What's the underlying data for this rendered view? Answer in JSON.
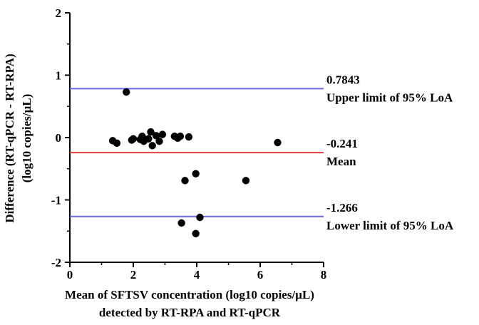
{
  "chart_data": {
    "type": "scatter",
    "title": "",
    "xlabel_line1": "Mean of SFTSV concentration (log10 copies/µL)",
    "xlabel_line2": "detected by RT-RPA and RT-qPCR",
    "ylabel_line1": "Difference (RT-qPCR - RT-RPA)",
    "ylabel_line2": "(log10 copies/µL)",
    "xlim": [
      0,
      8
    ],
    "ylim": [
      -2,
      2
    ],
    "x_ticks": [
      0,
      2,
      4,
      6,
      8
    ],
    "y_ticks": [
      -2,
      -1,
      0,
      1,
      2
    ],
    "x_tick_labels": [
      "0",
      "2",
      "4",
      "6",
      "8"
    ],
    "y_tick_labels": [
      "-2",
      "-1",
      "0",
      "1",
      "2"
    ],
    "grid": false,
    "points": [
      {
        "x": 1.35,
        "y": -0.05
      },
      {
        "x": 1.48,
        "y": -0.09
      },
      {
        "x": 1.78,
        "y": 0.73
      },
      {
        "x": 1.95,
        "y": -0.04
      },
      {
        "x": 2.0,
        "y": -0.02
      },
      {
        "x": 2.22,
        "y": -0.03
      },
      {
        "x": 2.28,
        "y": 0.02
      },
      {
        "x": 2.33,
        "y": -0.06
      },
      {
        "x": 2.48,
        "y": -0.02
      },
      {
        "x": 2.55,
        "y": 0.09
      },
      {
        "x": 2.6,
        "y": -0.13
      },
      {
        "x": 2.72,
        "y": 0.03
      },
      {
        "x": 2.82,
        "y": -0.06
      },
      {
        "x": 2.92,
        "y": 0.05
      },
      {
        "x": 3.3,
        "y": 0.02
      },
      {
        "x": 3.4,
        "y": -0.01
      },
      {
        "x": 3.48,
        "y": 0.02
      },
      {
        "x": 3.52,
        "y": -1.37
      },
      {
        "x": 3.63,
        "y": -0.69
      },
      {
        "x": 3.75,
        "y": 0.01
      },
      {
        "x": 3.97,
        "y": -0.58
      },
      {
        "x": 3.97,
        "y": -1.54
      },
      {
        "x": 4.1,
        "y": -1.28
      },
      {
        "x": 5.55,
        "y": -0.69
      },
      {
        "x": 6.55,
        "y": -0.08
      }
    ],
    "reference_lines": [
      {
        "name": "upper",
        "y": 0.7843,
        "color": "#6b6bea",
        "value_label": "0.7843",
        "text_label": "Upper limit of 95% LoA"
      },
      {
        "name": "mean",
        "y": -0.241,
        "color": "#e8403c",
        "value_label": "-0.241",
        "text_label": "Mean"
      },
      {
        "name": "lower",
        "y": -1.266,
        "color": "#6b6bea",
        "value_label": "-1.266",
        "text_label": "Lower limit of 95% LoA"
      }
    ],
    "point_color": "#000000"
  }
}
